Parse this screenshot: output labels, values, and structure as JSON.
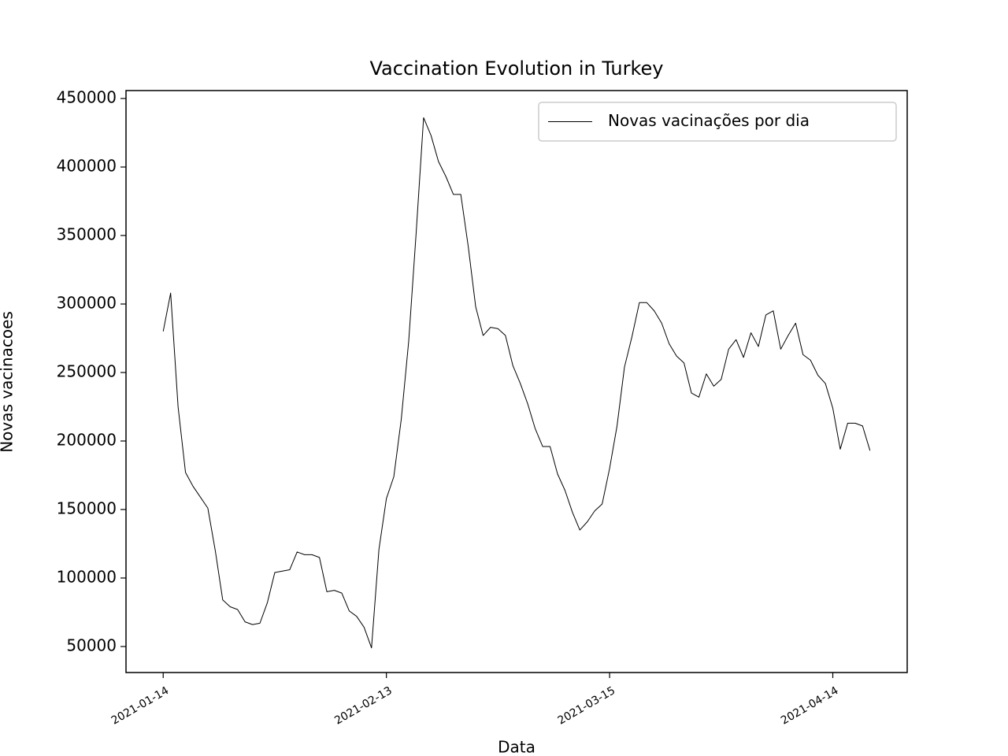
{
  "chart_data": {
    "type": "line",
    "title": "Vaccination Evolution in Turkey",
    "x_label": "Data",
    "y_label": "Novas vacinacoes",
    "x": [
      "2021-01-14",
      "2021-01-15",
      "2021-01-16",
      "2021-01-17",
      "2021-01-18",
      "2021-01-19",
      "2021-01-20",
      "2021-01-21",
      "2021-01-22",
      "2021-01-23",
      "2021-01-24",
      "2021-01-25",
      "2021-01-26",
      "2021-01-27",
      "2021-01-28",
      "2021-01-29",
      "2021-01-30",
      "2021-01-31",
      "2021-02-01",
      "2021-02-02",
      "2021-02-03",
      "2021-02-04",
      "2021-02-05",
      "2021-02-06",
      "2021-02-07",
      "2021-02-08",
      "2021-02-09",
      "2021-02-10",
      "2021-02-11",
      "2021-02-12",
      "2021-02-13",
      "2021-02-14",
      "2021-02-15",
      "2021-02-16",
      "2021-02-17",
      "2021-02-18",
      "2021-02-19",
      "2021-02-20",
      "2021-02-21",
      "2021-02-22",
      "2021-02-23",
      "2021-02-24",
      "2021-02-25",
      "2021-02-26",
      "2021-02-27",
      "2021-02-28",
      "2021-03-01",
      "2021-03-02",
      "2021-03-03",
      "2021-03-04",
      "2021-03-05",
      "2021-03-06",
      "2021-03-07",
      "2021-03-08",
      "2021-03-09",
      "2021-03-10",
      "2021-03-11",
      "2021-03-12",
      "2021-03-13",
      "2021-03-14",
      "2021-03-15",
      "2021-03-16",
      "2021-03-17",
      "2021-03-18",
      "2021-03-19",
      "2021-03-20",
      "2021-03-21",
      "2021-03-22",
      "2021-03-23",
      "2021-03-24",
      "2021-03-25",
      "2021-03-26",
      "2021-03-27",
      "2021-03-28",
      "2021-03-29",
      "2021-03-30",
      "2021-03-31",
      "2021-04-01",
      "2021-04-02",
      "2021-04-03",
      "2021-04-04",
      "2021-04-05",
      "2021-04-06",
      "2021-04-07",
      "2021-04-08",
      "2021-04-09",
      "2021-04-10",
      "2021-04-11",
      "2021-04-12",
      "2021-04-13",
      "2021-04-14",
      "2021-04-15",
      "2021-04-16",
      "2021-04-17",
      "2021-04-18",
      "2021-04-19"
    ],
    "series": [
      {
        "name": "Novas vacinações por dia",
        "color": "#000000",
        "values": [
          280000,
          308000,
          225000,
          177000,
          167000,
          159000,
          151000,
          120000,
          84000,
          79000,
          77000,
          68000,
          66000,
          67000,
          82000,
          104000,
          105000,
          106000,
          119000,
          117000,
          117000,
          115000,
          90000,
          91000,
          89000,
          76000,
          72000,
          64000,
          49000,
          121000,
          158000,
          174000,
          216000,
          273000,
          352000,
          436000,
          423000,
          404000,
          393000,
          380000,
          380000,
          342000,
          298000,
          277000,
          283000,
          282000,
          277000,
          255000,
          242000,
          227000,
          209000,
          196000,
          196000,
          176000,
          164000,
          148000,
          135000,
          141000,
          149000,
          154000,
          180000,
          211000,
          254000,
          276000,
          301000,
          301000,
          295000,
          286000,
          271000,
          262000,
          257000,
          235000,
          232000,
          249000,
          240000,
          245000,
          267000,
          274000,
          261000,
          279000,
          269000,
          292000,
          295000,
          267000,
          277000,
          286000,
          263000,
          259000,
          248000,
          242000,
          224000,
          194000,
          213000,
          213000,
          211000,
          193000
        ]
      }
    ],
    "xlim": [
      "2021-01-09",
      "2021-04-24"
    ],
    "xticks": [
      "2021-01-14",
      "2021-02-13",
      "2021-03-15",
      "2021-04-14"
    ],
    "ylim": [
      31000,
      455800
    ],
    "yticks": [
      50000,
      100000,
      150000,
      200000,
      250000,
      300000,
      350000,
      400000,
      450000
    ],
    "legend": "upper right"
  }
}
